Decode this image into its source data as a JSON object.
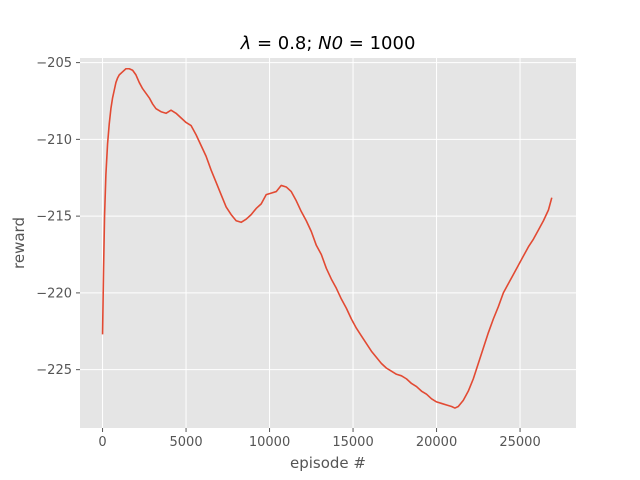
{
  "chart_data": {
    "type": "line",
    "title": "λ = 0.8; N0 = 1000",
    "title_parts": {
      "lambda": "λ",
      "eq1": " = 0.8; ",
      "n0": "N0",
      "eq2": " = 1000"
    },
    "xlabel": "episode #",
    "ylabel": "reward",
    "xlim": [
      -1350,
      28350
    ],
    "ylim": [
      -228.8,
      -204.7
    ],
    "xticks": [
      0,
      5000,
      10000,
      15000,
      20000,
      25000
    ],
    "xtick_labels": [
      "0",
      "5000",
      "10000",
      "15000",
      "20000",
      "25000"
    ],
    "yticks": [
      -225,
      -220,
      -215,
      -210,
      -205
    ],
    "ytick_labels": [
      "−225",
      "−220",
      "−215",
      "−210",
      "−205"
    ],
    "grid": true,
    "style": {
      "background": "#e5e5e5",
      "grid_color": "#ffffff",
      "line_color": "#e24a33"
    },
    "series": [
      {
        "color": "#e24a33",
        "x": [
          0,
          60,
          120,
          200,
          300,
          400,
          500,
          600,
          700,
          800,
          900,
          1000,
          1200,
          1400,
          1600,
          1800,
          2000,
          2200,
          2400,
          2600,
          2800,
          3000,
          3200,
          3500,
          3800,
          4100,
          4400,
          4700,
          5000,
          5300,
          5600,
          5900,
          6200,
          6500,
          6800,
          7100,
          7400,
          7700,
          8000,
          8300,
          8600,
          8900,
          9200,
          9500,
          9800,
          10100,
          10400,
          10700,
          11000,
          11300,
          11600,
          11900,
          12200,
          12500,
          12800,
          13100,
          13400,
          13700,
          14000,
          14300,
          14600,
          14900,
          15200,
          15500,
          15800,
          16100,
          16400,
          16700,
          17000,
          17300,
          17600,
          17900,
          18200,
          18500,
          18800,
          19100,
          19400,
          19700,
          20000,
          20300,
          20600,
          20900,
          21100,
          21300,
          21600,
          21900,
          22200,
          22500,
          22800,
          23100,
          23400,
          23700,
          24000,
          24300,
          24600,
          24900,
          25200,
          25500,
          25800,
          26100,
          26400,
          26700,
          26900
        ],
        "y": [
          -222.7,
          -218.5,
          -215.0,
          -212.3,
          -210.3,
          -209.0,
          -208.0,
          -207.3,
          -206.8,
          -206.3,
          -206.0,
          -205.8,
          -205.6,
          -205.4,
          -205.4,
          -205.5,
          -205.8,
          -206.3,
          -206.7,
          -207.0,
          -207.3,
          -207.7,
          -208.0,
          -208.2,
          -208.3,
          -208.1,
          -208.3,
          -208.6,
          -208.9,
          -209.1,
          -209.7,
          -210.4,
          -211.1,
          -212.0,
          -212.8,
          -213.6,
          -214.4,
          -214.9,
          -215.3,
          -215.4,
          -215.2,
          -214.9,
          -214.5,
          -214.2,
          -213.6,
          -213.5,
          -213.4,
          -213.0,
          -213.1,
          -213.4,
          -214.0,
          -214.7,
          -215.3,
          -216.0,
          -216.9,
          -217.5,
          -218.4,
          -219.1,
          -219.7,
          -220.4,
          -221.0,
          -221.7,
          -222.3,
          -222.8,
          -223.3,
          -223.8,
          -224.2,
          -224.6,
          -224.9,
          -225.1,
          -225.3,
          -225.4,
          -225.6,
          -225.9,
          -226.1,
          -226.4,
          -226.6,
          -226.9,
          -227.1,
          -227.2,
          -227.3,
          -227.4,
          -227.5,
          -227.4,
          -227.0,
          -226.4,
          -225.6,
          -224.6,
          -223.6,
          -222.6,
          -221.7,
          -220.9,
          -220.0,
          -219.4,
          -218.8,
          -218.2,
          -217.6,
          -217.0,
          -216.5,
          -215.9,
          -215.3,
          -214.6,
          -213.8
        ]
      }
    ]
  }
}
